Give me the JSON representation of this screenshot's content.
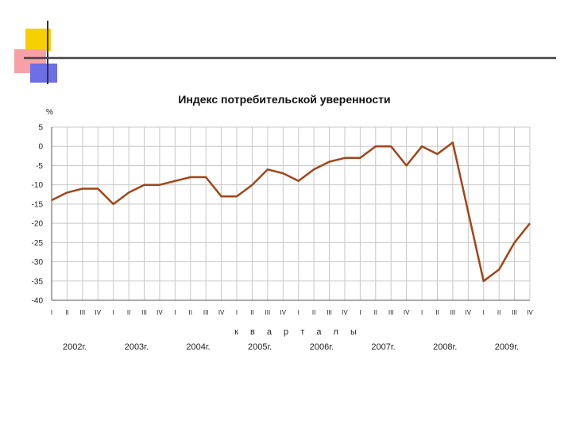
{
  "chart_data": {
    "type": "line",
    "title": "Индекс потребительской уверенности",
    "ylabel": "%",
    "xlabel": "к в а р т а л ы",
    "ylim": [
      -40,
      5
    ],
    "yticks": [
      5,
      0,
      -5,
      -10,
      -15,
      -20,
      -25,
      -30,
      -35,
      -40
    ],
    "grid": true,
    "quarter_labels": [
      "I",
      "II",
      "III",
      "IV",
      "I",
      "II",
      "III",
      "IV",
      "I",
      "II",
      "III",
      "IV",
      "I",
      "II",
      "III",
      "IV",
      "I",
      "II",
      "III",
      "IV",
      "I",
      "II",
      "III",
      "IV",
      "I",
      "II",
      "III",
      "IV",
      "I",
      "II",
      "III",
      "IV"
    ],
    "years": [
      "2002г.",
      "2003г.",
      "2004г.",
      "2005г.",
      "2006г.",
      "2007г.",
      "2008г.",
      "2009г."
    ],
    "line_color": "#a0461a",
    "series": [
      {
        "values": [
          -14,
          -12,
          -11,
          -11,
          -15,
          -12,
          -10,
          -10,
          -9,
          -8,
          -8,
          -13,
          -13,
          -10,
          -6,
          -7,
          -9,
          -6,
          -4,
          -3,
          -3,
          0,
          0,
          -5,
          0,
          -2,
          1,
          -17,
          -35,
          -32,
          -25,
          -20
        ]
      }
    ]
  }
}
